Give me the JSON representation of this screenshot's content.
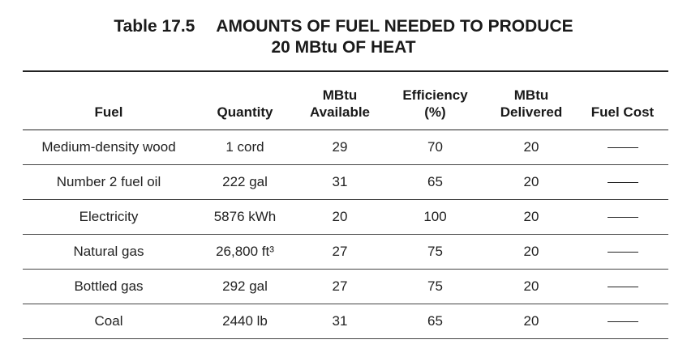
{
  "table": {
    "number": "Table 17.5",
    "title_line1": "AMOUNTS OF FUEL NEEDED TO PRODUCE",
    "title_line2": "20 MBtu OF HEAT",
    "headers": [
      {
        "line1": "",
        "line2": "Fuel"
      },
      {
        "line1": "",
        "line2": "Quantity"
      },
      {
        "line1": "MBtu",
        "line2": "Available"
      },
      {
        "line1": "Efficiency",
        "line2": "(%)"
      },
      {
        "line1": "MBtu",
        "line2": "Delivered"
      },
      {
        "line1": "",
        "line2": "Fuel Cost"
      }
    ],
    "rows": [
      {
        "fuel": "Medium-density wood",
        "quantity": "1 cord",
        "available": "29",
        "efficiency": "70",
        "delivered": "20"
      },
      {
        "fuel": "Number 2 fuel oil",
        "quantity": "222 gal",
        "available": "31",
        "efficiency": "65",
        "delivered": "20"
      },
      {
        "fuel": "Electricity",
        "quantity": "5876 kWh",
        "available": "20",
        "efficiency": "100",
        "delivered": "20"
      },
      {
        "fuel": "Natural gas",
        "quantity": "26,800 ft³",
        "available": "27",
        "efficiency": "75",
        "delivered": "20"
      },
      {
        "fuel": "Bottled gas",
        "quantity": "292 gal",
        "available": "27",
        "efficiency": "75",
        "delivered": "20"
      },
      {
        "fuel": "Coal",
        "quantity": "2440 lb",
        "available": "31",
        "efficiency": "65",
        "delivered": "20"
      }
    ]
  }
}
